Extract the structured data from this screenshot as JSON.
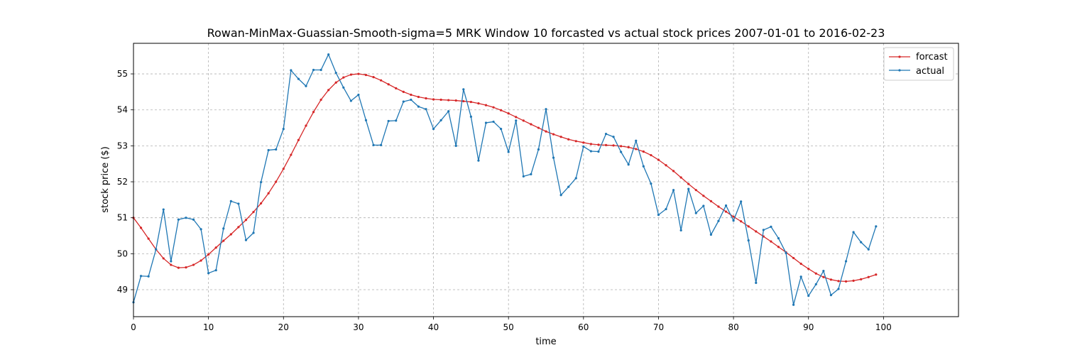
{
  "chart_data": {
    "type": "line",
    "title": "Rowan-MinMax-Guassian-Smooth-sigma=5 MRK Window 10 forcasted vs actual stock prices 2007-01-01 to 2016-02-23",
    "xlabel": "time",
    "ylabel": "stock price ($)",
    "xlim": [
      0,
      110
    ],
    "ylim": [
      48.25,
      55.85
    ],
    "xticks": [
      0,
      10,
      20,
      30,
      40,
      50,
      60,
      70,
      80,
      90,
      100
    ],
    "yticks": [
      49,
      50,
      51,
      52,
      53,
      54,
      55
    ],
    "grid": true,
    "legend_position": "top-right",
    "series": [
      {
        "name": "forcast",
        "color": "#d62728",
        "values": [
          51.0,
          50.72,
          50.42,
          50.12,
          49.87,
          49.69,
          49.61,
          49.62,
          49.69,
          49.81,
          49.98,
          50.17,
          50.36,
          50.54,
          50.74,
          50.94,
          51.16,
          51.4,
          51.68,
          52.0,
          52.36,
          52.75,
          53.16,
          53.56,
          53.94,
          54.28,
          54.55,
          54.76,
          54.9,
          54.98,
          55.0,
          54.97,
          54.91,
          54.82,
          54.71,
          54.6,
          54.5,
          54.42,
          54.36,
          54.32,
          54.29,
          54.28,
          54.27,
          54.26,
          54.24,
          54.22,
          54.18,
          54.13,
          54.07,
          53.99,
          53.9,
          53.8,
          53.7,
          53.6,
          53.5,
          53.4,
          53.32,
          53.25,
          53.18,
          53.13,
          53.09,
          53.05,
          53.03,
          53.02,
          53.01,
          52.99,
          52.96,
          52.91,
          52.84,
          52.74,
          52.61,
          52.46,
          52.3,
          52.12,
          51.94,
          51.77,
          51.61,
          51.46,
          51.31,
          51.17,
          51.03,
          50.9,
          50.76,
          50.62,
          50.48,
          50.34,
          50.19,
          50.04,
          49.88,
          49.72,
          49.58,
          49.45,
          49.35,
          49.28,
          49.24,
          49.23,
          49.25,
          49.29,
          49.35,
          49.42
        ]
      },
      {
        "name": "actual",
        "color": "#1f77b4",
        "values": [
          48.65,
          49.38,
          49.37,
          50.12,
          51.23,
          49.79,
          50.95,
          51.0,
          50.95,
          50.68,
          49.46,
          49.54,
          50.7,
          51.46,
          51.39,
          50.38,
          50.58,
          51.99,
          52.88,
          52.9,
          53.47,
          55.1,
          54.86,
          54.66,
          55.11,
          55.11,
          55.54,
          55.03,
          54.62,
          54.25,
          54.42,
          53.71,
          53.02,
          53.02,
          53.69,
          53.7,
          54.23,
          54.28,
          54.09,
          54.02,
          53.47,
          53.71,
          53.96,
          53.0,
          54.57,
          53.81,
          52.59,
          53.64,
          53.67,
          53.47,
          52.83,
          53.7,
          52.15,
          52.21,
          52.9,
          54.02,
          52.67,
          51.63,
          51.86,
          52.1,
          52.98,
          52.85,
          52.84,
          53.33,
          53.25,
          52.83,
          52.48,
          53.14,
          52.43,
          51.95,
          51.08,
          51.24,
          51.77,
          50.65,
          51.8,
          51.13,
          51.33,
          50.53,
          50.91,
          51.34,
          50.92,
          51.45,
          50.37,
          49.19,
          50.66,
          50.75,
          50.43,
          50.02,
          48.58,
          49.36,
          48.83,
          49.15,
          49.52,
          48.85,
          49.02,
          49.79,
          50.6,
          50.32,
          50.12,
          50.76
        ]
      }
    ]
  }
}
